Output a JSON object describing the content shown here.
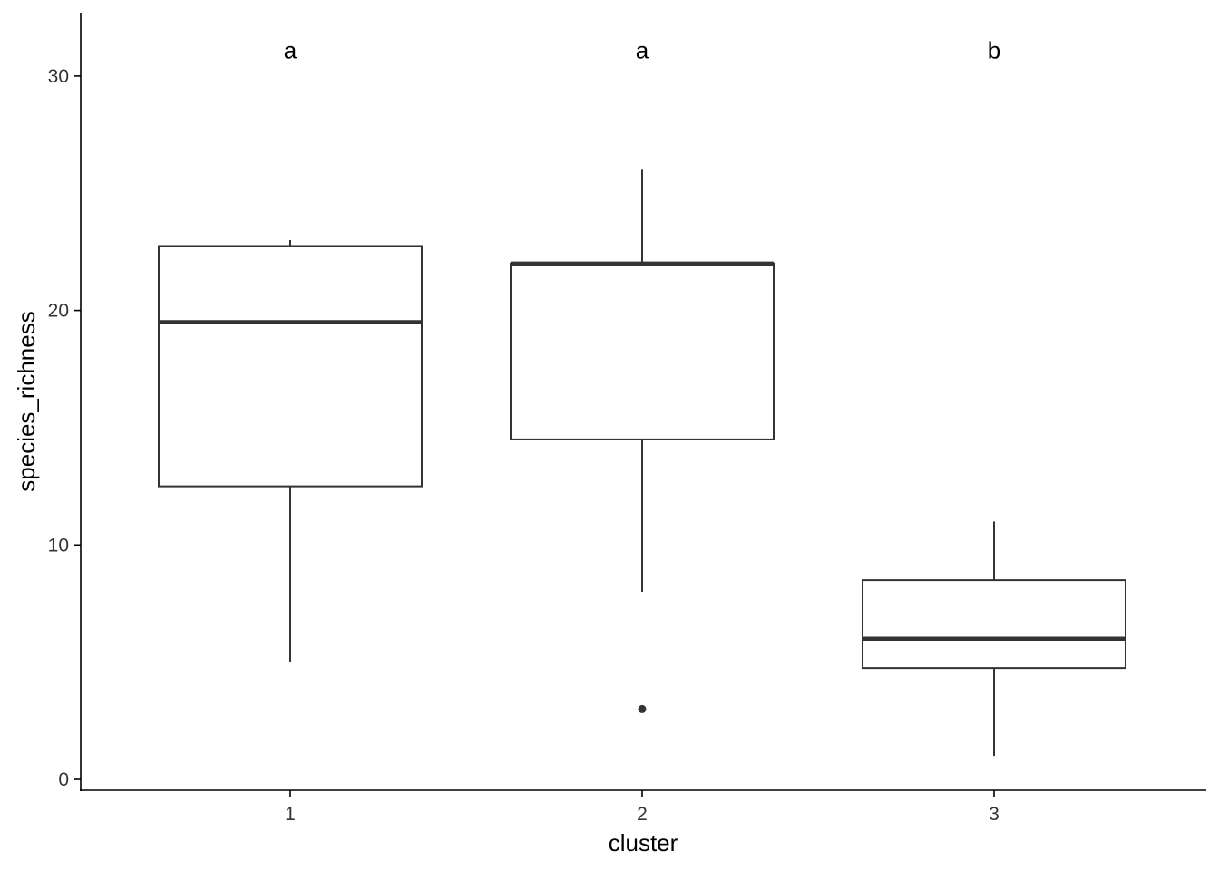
{
  "chart_data": {
    "type": "boxplot",
    "xlabel": "cluster",
    "ylabel": "species_richness",
    "categories": [
      "1",
      "2",
      "3"
    ],
    "ylim": [
      -0.5,
      32.7
    ],
    "yticks": [
      0,
      10,
      20,
      30
    ],
    "ytick_labels": [
      "0",
      "10",
      "20",
      "30"
    ],
    "grid": false,
    "boxes": [
      {
        "category": "1",
        "lower_whisker": 5,
        "q1": 12.5,
        "median": 19.5,
        "q3": 22.75,
        "upper_whisker": 23,
        "outliers": []
      },
      {
        "category": "2",
        "lower_whisker": 8,
        "q1": 14.5,
        "median": 22,
        "q3": 22,
        "upper_whisker": 26,
        "outliers": [
          3
        ]
      },
      {
        "category": "3",
        "lower_whisker": 1,
        "q1": 4.75,
        "median": 6,
        "q3": 8.5,
        "upper_whisker": 11,
        "outliers": []
      }
    ],
    "annotations": [
      {
        "category": "1",
        "text": "a",
        "y": 31.1
      },
      {
        "category": "2",
        "text": "a",
        "y": 31.1
      },
      {
        "category": "3",
        "text": "b",
        "y": 31.1
      }
    ],
    "colors": {
      "box": "#333333",
      "axis": "#000000",
      "text": "#000000"
    }
  }
}
